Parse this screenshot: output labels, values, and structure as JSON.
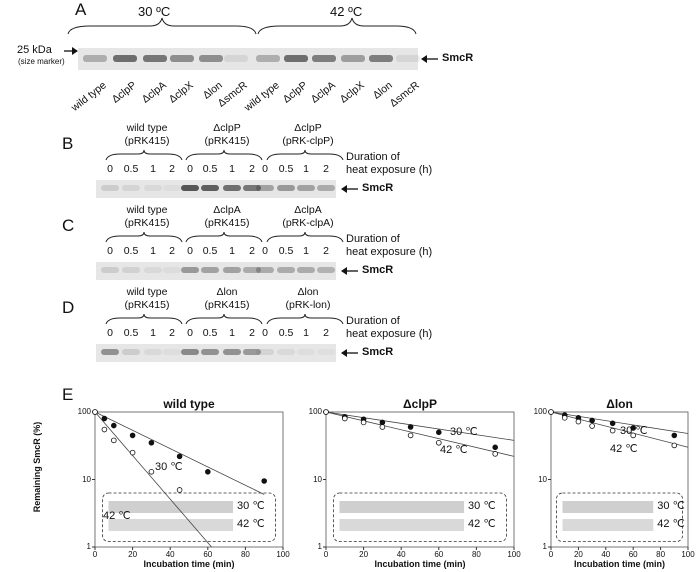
{
  "panel_a": {
    "letter": "A",
    "temp_left": "30 ºC",
    "temp_right": "42 ºC",
    "marker_label": "25 kDa",
    "marker_sub": "(size marker)",
    "band_label": "SmcR",
    "lanes": [
      "wild type",
      "ΔclpP",
      "ΔclpA",
      "ΔclpX",
      "Δlon",
      "ΔsmcR",
      "wild type",
      "ΔclpP",
      "ΔclpA",
      "ΔclpX",
      "Δlon",
      "ΔsmcR"
    ]
  },
  "panel_b": {
    "letter": "B",
    "strains": [
      {
        "line1": "wild type",
        "line2": "(pRK415)"
      },
      {
        "line1": "ΔclpP",
        "line2": "(pRK415)"
      },
      {
        "line1": "ΔclpP",
        "line2": "(pRK-clpP)"
      }
    ],
    "times": [
      "0",
      "0.5",
      "1",
      "2",
      "0",
      "0.5",
      "1",
      "2",
      "0",
      "0.5",
      "1",
      "2"
    ],
    "duration_line1": "Duration of",
    "duration_line2": "heat exposure (h)",
    "band_label": "SmcR"
  },
  "panel_c": {
    "letter": "C",
    "strains": [
      {
        "line1": "wild type",
        "line2": "(pRK415)"
      },
      {
        "line1": "ΔclpA",
        "line2": "(pRK415)"
      },
      {
        "line1": "ΔclpA",
        "line2": "(pRK-clpA)"
      }
    ],
    "times": [
      "0",
      "0.5",
      "1",
      "2",
      "0",
      "0.5",
      "1",
      "2",
      "0",
      "0.5",
      "1",
      "2"
    ],
    "duration_line1": "Duration of",
    "duration_line2": "heat exposure (h)",
    "band_label": "SmcR"
  },
  "panel_d": {
    "letter": "D",
    "strains": [
      {
        "line1": "wild type",
        "line2": "(pRK415)"
      },
      {
        "line1": "Δlon",
        "line2": "(pRK415)"
      },
      {
        "line1": "Δlon",
        "line2": "(pRK-lon)"
      }
    ],
    "times": [
      "0",
      "0.5",
      "1",
      "2",
      "0",
      "0.5",
      "1",
      "2",
      "0",
      "0.5",
      "1",
      "2"
    ],
    "duration_line1": "Duration of",
    "duration_line2": "heat exposure (h)",
    "band_label": "SmcR"
  },
  "panel_e": {
    "letter": "E",
    "ylabel": "Remaining SmcR (%)",
    "xlabel": "Incubation time (min)",
    "inset_30": "30 ℃",
    "inset_42": "42 ℃",
    "label_30": "30 ℃",
    "label_42": "42 ℃"
  },
  "chart_data": [
    {
      "type": "scatter",
      "title": "wild type",
      "xlabel": "Incubation time (min)",
      "ylabel": "Remaining SmcR (%)",
      "xlim": [
        0,
        100
      ],
      "ylim": [
        1,
        100
      ],
      "yscale": "log",
      "xticks": [
        0,
        20,
        40,
        60,
        80,
        100
      ],
      "yticks": [
        1,
        10,
        100
      ],
      "series": [
        {
          "name": "30 ℃",
          "marker": "filled",
          "x": [
            0,
            5,
            10,
            20,
            30,
            45,
            60,
            90
          ],
          "y": [
            100,
            80,
            63,
            45,
            35,
            22,
            13,
            9.5
          ]
        },
        {
          "name": "42 ℃",
          "marker": "open",
          "x": [
            0,
            5,
            10,
            20,
            30,
            45,
            60,
            90
          ],
          "y": [
            100,
            55,
            38,
            25,
            13,
            7,
            null,
            null
          ]
        }
      ]
    },
    {
      "type": "scatter",
      "title": "ΔclpP",
      "xlabel": "Incubation time (min)",
      "xlim": [
        0,
        100
      ],
      "ylim": [
        1,
        100
      ],
      "yscale": "log",
      "xticks": [
        0,
        20,
        40,
        60,
        80,
        100
      ],
      "yticks": [
        1,
        10,
        100
      ],
      "series": [
        {
          "name": "30 ℃",
          "marker": "filled",
          "x": [
            0,
            10,
            20,
            30,
            45,
            60,
            90
          ],
          "y": [
            100,
            85,
            78,
            70,
            60,
            50,
            30
          ]
        },
        {
          "name": "42 ℃",
          "marker": "open",
          "x": [
            0,
            10,
            20,
            30,
            45,
            60,
            90
          ],
          "y": [
            100,
            80,
            70,
            60,
            45,
            35,
            24
          ]
        }
      ]
    },
    {
      "type": "scatter",
      "title": "Δlon",
      "xlabel": "Incubation time (min)",
      "xlim": [
        0,
        100
      ],
      "ylim": [
        1,
        100
      ],
      "yscale": "log",
      "xticks": [
        0,
        20,
        40,
        60,
        80,
        100
      ],
      "yticks": [
        1,
        10,
        100
      ],
      "series": [
        {
          "name": "30 ℃",
          "marker": "filled",
          "x": [
            0,
            10,
            20,
            30,
            45,
            60,
            90
          ],
          "y": [
            100,
            90,
            82,
            75,
            68,
            58,
            45
          ]
        },
        {
          "name": "42 ℃",
          "marker": "open",
          "x": [
            0,
            10,
            20,
            30,
            45,
            60,
            90
          ],
          "y": [
            100,
            82,
            72,
            62,
            53,
            45,
            32
          ]
        }
      ]
    }
  ]
}
